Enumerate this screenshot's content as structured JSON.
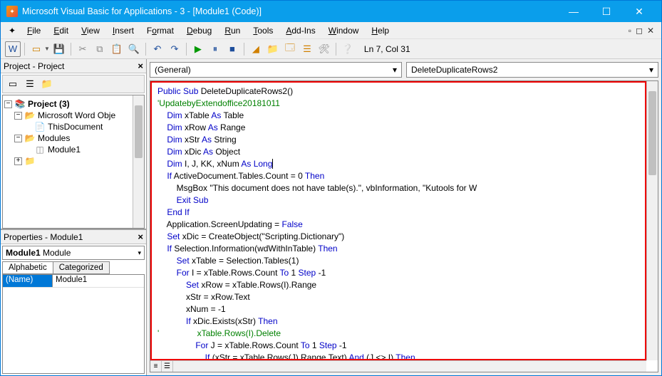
{
  "titlebar": {
    "title": "Microsoft Visual Basic for Applications - 3 - [Module1 (Code)]"
  },
  "menus": [
    "File",
    "Edit",
    "View",
    "Insert",
    "Format",
    "Debug",
    "Run",
    "Tools",
    "Add-Ins",
    "Window",
    "Help"
  ],
  "cursor_pos": "Ln 7, Col 31",
  "project_panel": {
    "title": "Project - Project",
    "root": "Project (3)",
    "folder1": "Microsoft Word Obje",
    "doc1": "ThisDocument",
    "folder2": "Modules",
    "module": "Module1"
  },
  "props_panel": {
    "title": "Properties - Module1",
    "combo_name": "Module1",
    "combo_type": "Module",
    "tab1": "Alphabetic",
    "tab2": "Categorized",
    "prop_name": "(Name)",
    "prop_val": "Module1"
  },
  "code_dd": {
    "left": "(General)",
    "right": "DeleteDuplicateRows2"
  },
  "code": {
    "l1a": "Public",
    "l1b": " Sub",
    "l1c": " DeleteDuplicateRows2()",
    "l2": "'UpdatebyExtendoffice20181011",
    "l3a": "    Dim",
    "l3b": " xTable ",
    "l3c": "As",
    "l3d": " Table",
    "l4a": "    Dim",
    "l4b": " xRow ",
    "l4c": "As",
    "l4d": " Range",
    "l5a": "    Dim",
    "l5b": " xStr ",
    "l5c": "As",
    "l5d": " String",
    "l6a": "    Dim",
    "l6b": " xDic ",
    "l6c": "As",
    "l6d": " Object",
    "l7a": "    Dim",
    "l7b": " I, J, KK, xNum ",
    "l7c": "As",
    "l7d": " Long",
    "l8a": "    If",
    "l8b": " ActiveDocument.Tables.Count = 0 ",
    "l8c": "Then",
    "l9": "        MsgBox \"This document does not have table(s).\", vbInformation, \"Kutools for W",
    "l10": "        Exit Sub",
    "l11": "    End If",
    "l12a": "    Application.ScreenUpdating = ",
    "l12b": "False",
    "l13a": "    Set",
    "l13b": " xDic = CreateObject(\"Scripting.Dictionary\")",
    "l14a": "    If",
    "l14b": " Selection.Information(wdWithInTable) ",
    "l14c": "Then",
    "l15a": "        Set",
    "l15b": " xTable = Selection.Tables(1)",
    "l16a": "        For",
    "l16b": " I = xTable.Rows.Count ",
    "l16c": "To",
    "l16d": " 1 ",
    "l16e": "Step",
    "l16f": " -1",
    "l17a": "            Set",
    "l17b": " xRow = xTable.Rows(I).Range",
    "l18": "            xStr = xRow.Text",
    "l19": "            xNum = -1",
    "l20a": "            If",
    "l20b": " xDic.Exists(xStr) ",
    "l20c": "Then",
    "l21": "'                xTable.Rows(I).Delete",
    "l22a": "                For",
    "l22b": " J = xTable.Rows.Count ",
    "l22c": "To",
    "l22d": " 1 ",
    "l22e": "Step",
    "l22f": " -1",
    "l23a": "                    If",
    "l23b": " (xStr = xTable.Rows(J).Range.Text) ",
    "l23c": "And",
    "l23d": " (J <> I) ",
    "l23e": "Then"
  }
}
